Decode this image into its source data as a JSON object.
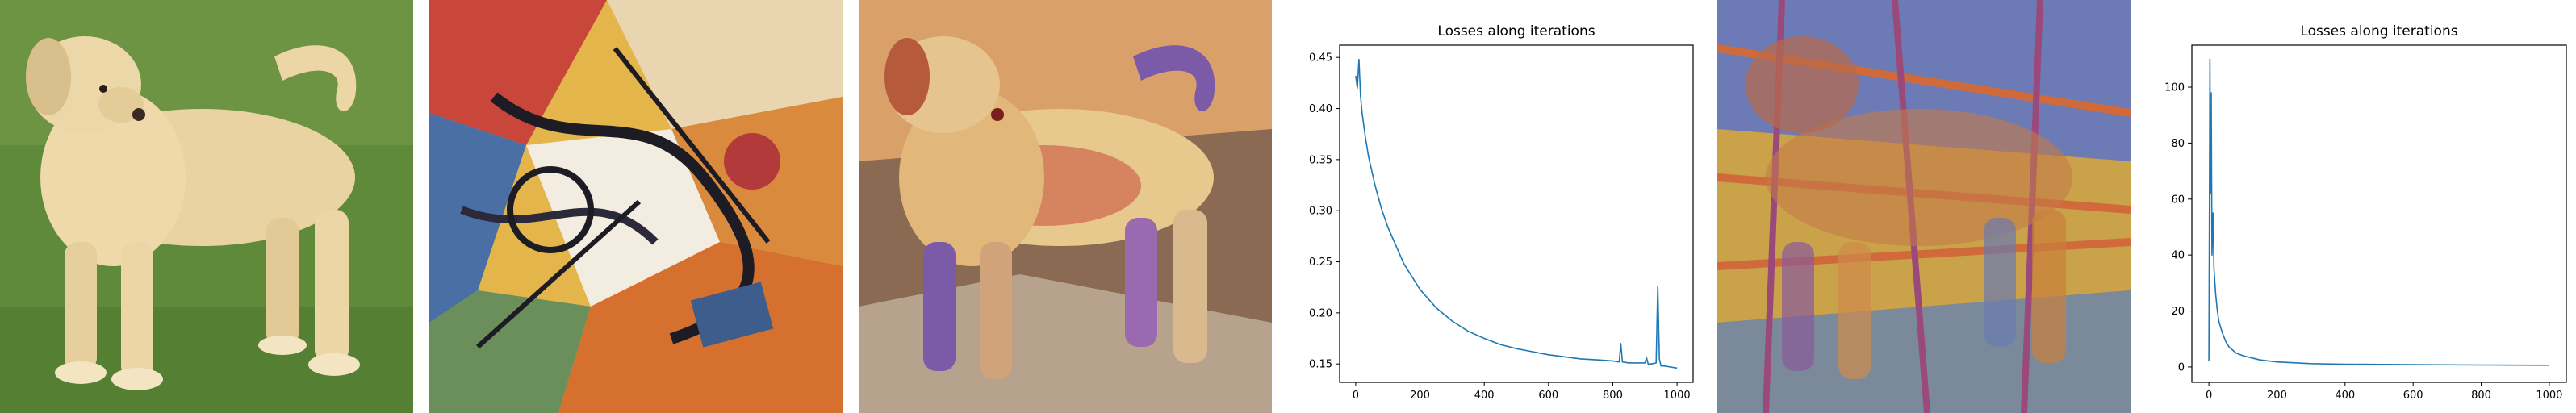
{
  "images": [
    {
      "subject": "dog-photo",
      "colors": [
        "#5f8a3a",
        "#e9d3a3",
        "#d8bf8c"
      ]
    },
    {
      "subject": "abstract-painting",
      "colors": [
        "#e3b54a",
        "#2c2a3a",
        "#c9463a",
        "#4a6fa5"
      ]
    },
    {
      "subject": "stylized-dog-1",
      "colors": [
        "#d9a06a",
        "#7b5aa8",
        "#c94b3c",
        "#e7c98d"
      ]
    },
    {
      "subject": "stylized-dog-2",
      "colors": [
        "#6c7bb5",
        "#d06a3a",
        "#c9a24a",
        "#9a4a7a"
      ]
    }
  ],
  "chart_data": [
    {
      "type": "line",
      "title": "Losses along iterations",
      "xlim": [
        -50,
        1050
      ],
      "ylim": [
        0.132,
        0.462
      ],
      "xticks": [
        0,
        200,
        400,
        600,
        800,
        1000
      ],
      "yticks": [
        0.15,
        0.2,
        0.25,
        0.3,
        0.35,
        0.4,
        0.45
      ],
      "series": [
        {
          "color": "#1f77b4",
          "x": [
            0,
            5,
            10,
            15,
            20,
            30,
            40,
            60,
            80,
            100,
            150,
            200,
            250,
            300,
            350,
            400,
            450,
            500,
            550,
            600,
            650,
            700,
            750,
            800,
            820,
            825,
            830,
            850,
            880,
            900,
            905,
            910,
            920,
            935,
            940,
            945,
            950,
            960,
            980,
            1000
          ],
          "y": [
            0.432,
            0.42,
            0.448,
            0.412,
            0.395,
            0.372,
            0.353,
            0.325,
            0.302,
            0.284,
            0.248,
            0.223,
            0.205,
            0.192,
            0.182,
            0.175,
            0.169,
            0.165,
            0.162,
            0.159,
            0.157,
            0.155,
            0.154,
            0.153,
            0.152,
            0.17,
            0.152,
            0.151,
            0.151,
            0.151,
            0.156,
            0.15,
            0.15,
            0.151,
            0.226,
            0.155,
            0.148,
            0.148,
            0.147,
            0.146
          ]
        }
      ]
    },
    {
      "type": "line",
      "title": "Losses along iterations",
      "xlim": [
        -50,
        1050
      ],
      "ylim": [
        -5.5,
        115
      ],
      "xticks": [
        0,
        200,
        400,
        600,
        800,
        1000
      ],
      "yticks": [
        0,
        20,
        40,
        60,
        80,
        100
      ],
      "series": [
        {
          "color": "#1f77b4",
          "x": [
            0,
            3,
            5,
            7,
            9,
            12,
            15,
            20,
            25,
            30,
            40,
            50,
            60,
            80,
            100,
            150,
            200,
            300,
            400,
            600,
            800,
            1000
          ],
          "y": [
            2,
            110,
            62,
            98,
            40,
            55,
            35,
            26,
            20,
            16,
            12,
            9,
            7,
            5,
            4,
            2.5,
            1.8,
            1.2,
            1.0,
            0.8,
            0.7,
            0.6
          ]
        }
      ]
    }
  ]
}
